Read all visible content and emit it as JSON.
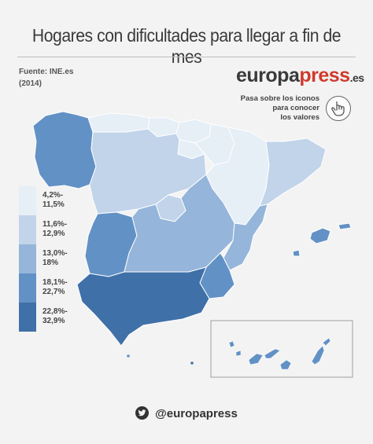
{
  "title": "Hogares con dificultades para llegar a fin de mes",
  "source": {
    "label": "Fuente: INE.es",
    "year": "(2014)"
  },
  "brand": {
    "part1": "europa",
    "part2": "press",
    "part3": ".es"
  },
  "hint": {
    "line1": "Pasa sobre los iconos",
    "line2": "para conocer",
    "line3": "los valores"
  },
  "legend": [
    {
      "l1": "4,2%-",
      "l2": "11,5%",
      "color": "#e6eef6"
    },
    {
      "l1": "11,6%-",
      "l2": "12,9%",
      "color": "#c1d4e9"
    },
    {
      "l1": "13,0%-",
      "l2": "18%",
      "color": "#95b5da"
    },
    {
      "l1": "18,1%-",
      "l2": "22,7%",
      "color": "#6291c5"
    },
    {
      "l1": "22,8%-",
      "l2": "32,9%",
      "color": "#3f70a8"
    }
  ],
  "footer": {
    "handle": "@europapress"
  },
  "icons": {
    "pointer": "hand-pointer-icon",
    "twitter": "twitter-icon"
  }
}
